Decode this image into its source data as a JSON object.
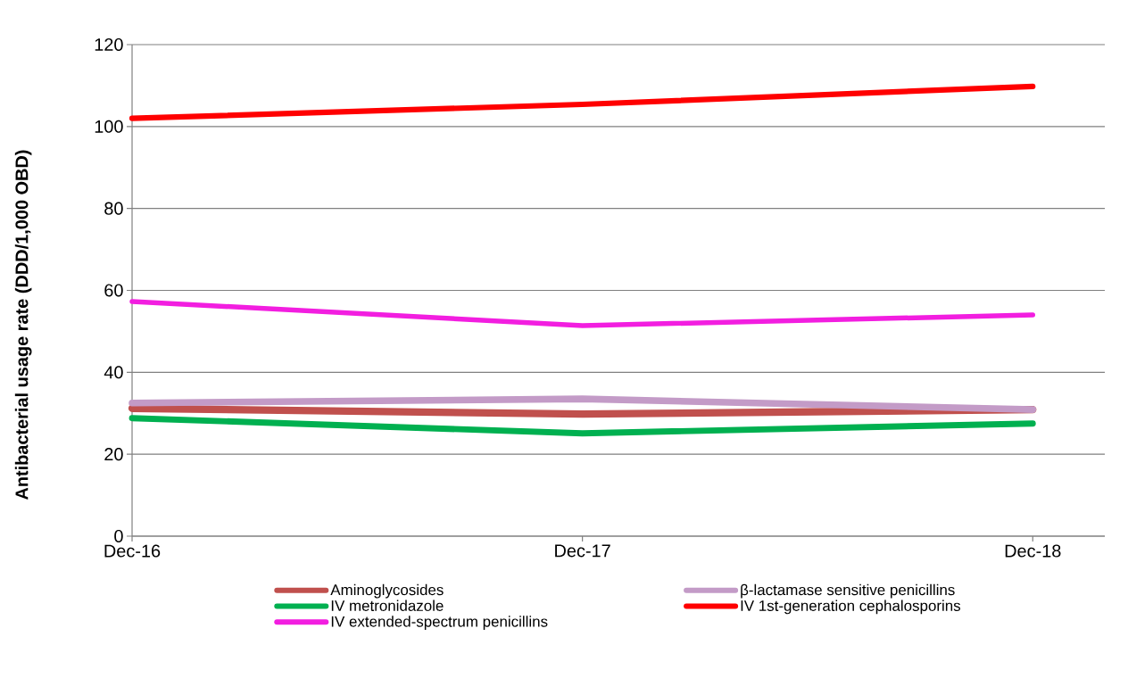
{
  "chart_data": {
    "type": "line",
    "ylabel": "Antibacterial usage rate (DDD/1,000 OBD)",
    "categories": [
      "Dec-16",
      "Dec-17",
      "Dec-18"
    ],
    "series": [
      {
        "name": "Aminoglycosides",
        "color": "#c0504d",
        "values": [
          31.2,
          29.8,
          30.9
        ]
      },
      {
        "name": "β-lactamase sensitive penicillins",
        "color": "#c39bc7",
        "values": [
          32.5,
          33.5,
          30.9
        ]
      },
      {
        "name": "IV metronidazole",
        "color": "#00b050",
        "values": [
          28.8,
          25.1,
          27.5
        ]
      },
      {
        "name": "IV 1st-generation cephalosporins",
        "color": "#ff0000",
        "values": [
          102,
          105.4,
          109.8
        ]
      },
      {
        "name": "IV extended-spectrum penicillins",
        "color": "#f21ee0",
        "values": [
          57.3,
          51.4,
          54
        ]
      }
    ],
    "ylim": [
      0,
      120
    ],
    "yticks": [
      0,
      20,
      40,
      60,
      80,
      100,
      120
    ],
    "grid": "y",
    "legend": "bottom",
    "marker": "none",
    "line_style": "solid"
  }
}
